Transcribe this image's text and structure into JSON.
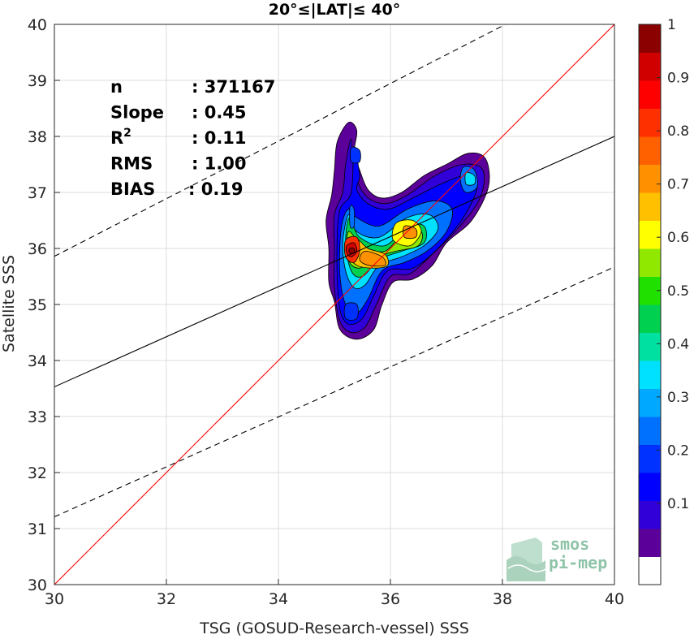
{
  "chart_data": {
    "type": "scatter",
    "subtype": "density-contour",
    "title": "20°≤|LAT|≤ 40°",
    "xlabel": "TSG (GOSUD-Research-vessel) SSS",
    "ylabel": "Satellite SSS",
    "xlim": [
      30,
      40
    ],
    "ylim": [
      30,
      40
    ],
    "xticks": [
      "30",
      "32",
      "34",
      "36",
      "38",
      "40"
    ],
    "yticks": [
      "30",
      "31",
      "32",
      "33",
      "34",
      "35",
      "36",
      "37",
      "38",
      "39",
      "40"
    ],
    "grid": true,
    "stats": [
      {
        "label": "n",
        "value": ": 371167"
      },
      {
        "label": "Slope",
        "value": ": 0.45"
      },
      {
        "label": "R",
        "sup": "2",
        "value": ": 0.11"
      },
      {
        "label": "RMS",
        "value": ": 1.00"
      },
      {
        "label": "BIAS",
        "value": ": 0.19"
      }
    ],
    "lines": {
      "identity": {
        "color": "#ff0000",
        "points": [
          [
            30,
            30
          ],
          [
            40,
            40
          ]
        ]
      },
      "fit": {
        "color": "#000000",
        "style": "solid",
        "points": [
          [
            30,
            33.53
          ],
          [
            40,
            38.0
          ]
        ]
      },
      "upper": {
        "color": "#000000",
        "style": "dashed",
        "points": [
          [
            30,
            35.86
          ],
          [
            40,
            41.0
          ]
        ]
      },
      "lower": {
        "color": "#000000",
        "style": "dashed",
        "points": [
          [
            30,
            31.21
          ],
          [
            40,
            35.67
          ]
        ]
      }
    },
    "colorbar": {
      "ticks": [
        "0.1",
        "0.2",
        "0.3",
        "0.4",
        "0.5",
        "0.6",
        "0.7",
        "0.8",
        "0.9",
        "1"
      ],
      "levels": [
        "#ffffff",
        "#5b0098",
        "#3100d8",
        "#0000ff",
        "#0032ff",
        "#0070ff",
        "#00a8ff",
        "#00e0ff",
        "#00e0a0",
        "#00d050",
        "#20e000",
        "#90e800",
        "#ffff00",
        "#ffc000",
        "#ff9000",
        "#ff6000",
        "#ff3000",
        "#ff0000",
        "#d00000",
        "#8b0000"
      ]
    },
    "density_blobs": [
      {
        "level": 1,
        "pts": [
          [
            35.25,
            38.25
          ],
          [
            35.4,
            38.1
          ],
          [
            35.35,
            37.7
          ],
          [
            35.45,
            37.4
          ],
          [
            35.6,
            37.05
          ],
          [
            35.85,
            36.9
          ],
          [
            36.2,
            37.0
          ],
          [
            36.6,
            37.3
          ],
          [
            37.0,
            37.5
          ],
          [
            37.4,
            37.7
          ],
          [
            37.7,
            37.6
          ],
          [
            37.75,
            37.1
          ],
          [
            37.45,
            36.5
          ],
          [
            37.0,
            36.1
          ],
          [
            36.75,
            35.7
          ],
          [
            36.4,
            35.45
          ],
          [
            36.05,
            35.4
          ],
          [
            35.85,
            35.0
          ],
          [
            35.7,
            34.55
          ],
          [
            35.4,
            34.38
          ],
          [
            35.1,
            34.55
          ],
          [
            35.0,
            35.05
          ],
          [
            34.9,
            35.4
          ],
          [
            34.9,
            36.0
          ],
          [
            34.85,
            36.5
          ],
          [
            34.95,
            36.95
          ],
          [
            35.0,
            37.4
          ],
          [
            35.05,
            37.9
          ]
        ]
      },
      {
        "level": 2,
        "pts": [
          [
            35.3,
            37.95
          ],
          [
            35.35,
            37.4
          ],
          [
            35.55,
            36.95
          ],
          [
            35.9,
            36.8
          ],
          [
            36.3,
            36.95
          ],
          [
            36.8,
            37.3
          ],
          [
            37.3,
            37.5
          ],
          [
            37.65,
            37.4
          ],
          [
            37.6,
            36.9
          ],
          [
            37.2,
            36.35
          ],
          [
            36.75,
            35.9
          ],
          [
            36.35,
            35.55
          ],
          [
            36.0,
            35.5
          ],
          [
            35.75,
            35.0
          ],
          [
            35.55,
            34.6
          ],
          [
            35.3,
            34.5
          ],
          [
            35.1,
            34.7
          ],
          [
            35.0,
            35.3
          ],
          [
            35.0,
            36.0
          ],
          [
            35.0,
            36.6
          ],
          [
            35.15,
            37.0
          ],
          [
            35.2,
            37.5
          ]
        ]
      },
      {
        "level": 3,
        "pts": [
          [
            35.35,
            37.75
          ],
          [
            35.45,
            37.3
          ],
          [
            35.4,
            37.05
          ],
          [
            35.6,
            36.8
          ],
          [
            35.95,
            36.7
          ],
          [
            36.4,
            36.9
          ],
          [
            36.9,
            37.15
          ],
          [
            37.35,
            37.3
          ],
          [
            37.55,
            37.1
          ],
          [
            37.3,
            36.55
          ],
          [
            36.85,
            36.0
          ],
          [
            36.4,
            35.65
          ],
          [
            35.95,
            35.6
          ],
          [
            35.7,
            35.15
          ],
          [
            35.5,
            34.75
          ],
          [
            35.25,
            34.65
          ],
          [
            35.1,
            34.9
          ],
          [
            35.05,
            35.5
          ],
          [
            35.05,
            36.2
          ],
          [
            35.1,
            36.7
          ],
          [
            35.3,
            37.0
          ]
        ]
      },
      {
        "level": 5,
        "pts": [
          [
            35.25,
            36.7
          ],
          [
            35.4,
            36.55
          ],
          [
            35.8,
            36.4
          ],
          [
            36.3,
            36.7
          ],
          [
            36.8,
            36.85
          ],
          [
            37.1,
            36.7
          ],
          [
            37.0,
            36.3
          ],
          [
            36.65,
            35.95
          ],
          [
            36.25,
            35.75
          ],
          [
            35.85,
            35.6
          ],
          [
            35.6,
            35.1
          ],
          [
            35.4,
            34.85
          ],
          [
            35.2,
            35.0
          ],
          [
            35.1,
            35.5
          ],
          [
            35.1,
            36.1
          ],
          [
            35.15,
            36.5
          ]
        ]
      },
      {
        "level": 7,
        "pts": [
          [
            35.25,
            36.6
          ],
          [
            35.4,
            36.3
          ],
          [
            35.8,
            36.2
          ],
          [
            36.3,
            36.55
          ],
          [
            36.7,
            36.6
          ],
          [
            36.85,
            36.35
          ],
          [
            36.6,
            36.05
          ],
          [
            36.2,
            35.85
          ],
          [
            35.8,
            35.7
          ],
          [
            35.55,
            35.35
          ],
          [
            35.35,
            35.3
          ],
          [
            35.2,
            35.6
          ],
          [
            35.15,
            36.1
          ]
        ]
      },
      {
        "level": 9,
        "pts": [
          [
            35.27,
            36.55
          ],
          [
            35.45,
            36.2
          ],
          [
            35.9,
            36.05
          ],
          [
            36.3,
            36.4
          ],
          [
            36.6,
            36.4
          ],
          [
            36.6,
            36.1
          ],
          [
            36.2,
            35.95
          ],
          [
            35.8,
            35.8
          ],
          [
            35.5,
            35.5
          ],
          [
            35.3,
            35.6
          ],
          [
            35.2,
            36.1
          ]
        ]
      },
      {
        "level": 11,
        "pts": [
          [
            35.25,
            36.3
          ],
          [
            35.5,
            36.05
          ],
          [
            35.9,
            35.95
          ],
          [
            36.25,
            36.3
          ],
          [
            36.55,
            36.3
          ],
          [
            36.5,
            36.05
          ],
          [
            36.1,
            35.95
          ],
          [
            35.75,
            35.85
          ],
          [
            35.45,
            35.65
          ],
          [
            35.25,
            35.8
          ]
        ]
      },
      {
        "level": 12,
        "pts": [
          [
            36.1,
            36.45
          ],
          [
            36.4,
            36.5
          ],
          [
            36.55,
            36.3
          ],
          [
            36.35,
            36.05
          ],
          [
            36.05,
            36.15
          ]
        ]
      },
      {
        "level": 13,
        "pts": [
          [
            35.35,
            36.2
          ],
          [
            35.6,
            36.0
          ],
          [
            35.9,
            35.9
          ],
          [
            35.95,
            35.7
          ],
          [
            35.7,
            35.65
          ],
          [
            35.4,
            35.7
          ],
          [
            35.25,
            35.9
          ]
        ]
      },
      {
        "level": 14,
        "pts": [
          [
            35.55,
            35.95
          ],
          [
            35.85,
            35.85
          ],
          [
            35.9,
            35.7
          ],
          [
            35.6,
            35.7
          ],
          [
            35.45,
            35.8
          ]
        ]
      },
      {
        "level": 14,
        "pts": [
          [
            36.25,
            36.4
          ],
          [
            36.45,
            36.35
          ],
          [
            36.45,
            36.2
          ],
          [
            36.25,
            36.2
          ]
        ]
      },
      {
        "level": 16,
        "pts": [
          [
            35.2,
            36.15
          ],
          [
            35.4,
            36.2
          ],
          [
            35.45,
            35.95
          ],
          [
            35.35,
            35.75
          ],
          [
            35.2,
            35.85
          ]
        ]
      },
      {
        "level": 18,
        "pts": [
          [
            35.22,
            36.05
          ],
          [
            35.35,
            36.1
          ],
          [
            35.4,
            35.95
          ],
          [
            35.3,
            35.85
          ],
          [
            35.22,
            35.92
          ]
        ]
      },
      {
        "level": 19,
        "pts": [
          [
            35.27,
            36.0
          ],
          [
            35.35,
            36.0
          ],
          [
            35.35,
            35.92
          ],
          [
            35.27,
            35.92
          ]
        ]
      },
      {
        "level": 5,
        "pts": [
          [
            35.28,
            36.75
          ],
          [
            35.35,
            36.7
          ],
          [
            35.35,
            36.4
          ],
          [
            35.28,
            36.4
          ]
        ]
      },
      {
        "level": 5,
        "pts": [
          [
            37.3,
            37.45
          ],
          [
            37.5,
            37.4
          ],
          [
            37.55,
            37.1
          ],
          [
            37.35,
            37.0
          ],
          [
            37.25,
            37.2
          ]
        ]
      },
      {
        "level": 7,
        "pts": [
          [
            37.35,
            37.35
          ],
          [
            37.5,
            37.3
          ],
          [
            37.5,
            37.15
          ],
          [
            37.35,
            37.15
          ]
        ]
      },
      {
        "level": 4,
        "pts": [
          [
            35.3,
            37.8
          ],
          [
            35.45,
            37.75
          ],
          [
            35.45,
            37.55
          ],
          [
            35.3,
            37.55
          ]
        ]
      },
      {
        "level": 4,
        "pts": [
          [
            35.2,
            35.0
          ],
          [
            35.4,
            35.0
          ],
          [
            35.4,
            34.75
          ],
          [
            35.2,
            34.75
          ]
        ]
      }
    ]
  },
  "logo": {
    "line1": "smos",
    "line2": "pi-mep"
  }
}
